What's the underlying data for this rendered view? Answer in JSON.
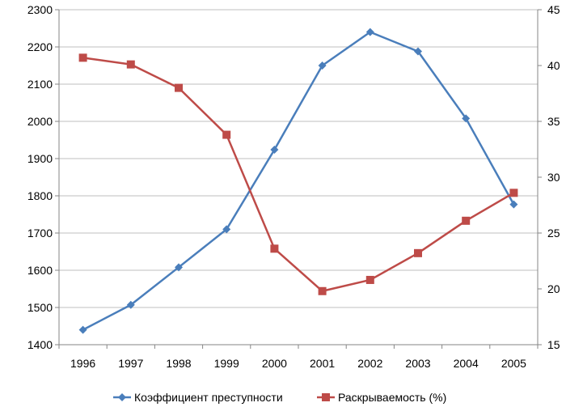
{
  "chart_data": {
    "type": "line",
    "categories": [
      "1996",
      "1997",
      "1998",
      "1999",
      "2000",
      "2001",
      "2002",
      "2003",
      "2004",
      "2005"
    ],
    "series": [
      {
        "name": "Коэффициент преступности",
        "axis": "left",
        "color": "#4a7ebb",
        "marker": "diamond",
        "values": [
          1440,
          1507,
          1608,
          1710,
          1924,
          2150,
          2240,
          2188,
          2008,
          1777
        ]
      },
      {
        "name": "Раскрываемость (%)",
        "axis": "right",
        "color": "#be4b48",
        "marker": "square",
        "values": [
          40.7,
          40.1,
          38.0,
          33.8,
          23.6,
          19.8,
          20.8,
          23.2,
          26.1,
          28.6
        ]
      }
    ],
    "y_left": {
      "lim": [
        1400,
        2300
      ],
      "ticks": [
        "1400",
        "1500",
        "1600",
        "1700",
        "1800",
        "1900",
        "2000",
        "2100",
        "2200",
        "2300"
      ]
    },
    "y_right": {
      "lim": [
        15,
        45
      ],
      "ticks": [
        "15",
        "20",
        "25",
        "30",
        "35",
        "40",
        "45"
      ]
    },
    "grid": "horizontal",
    "legend": "bottom"
  }
}
